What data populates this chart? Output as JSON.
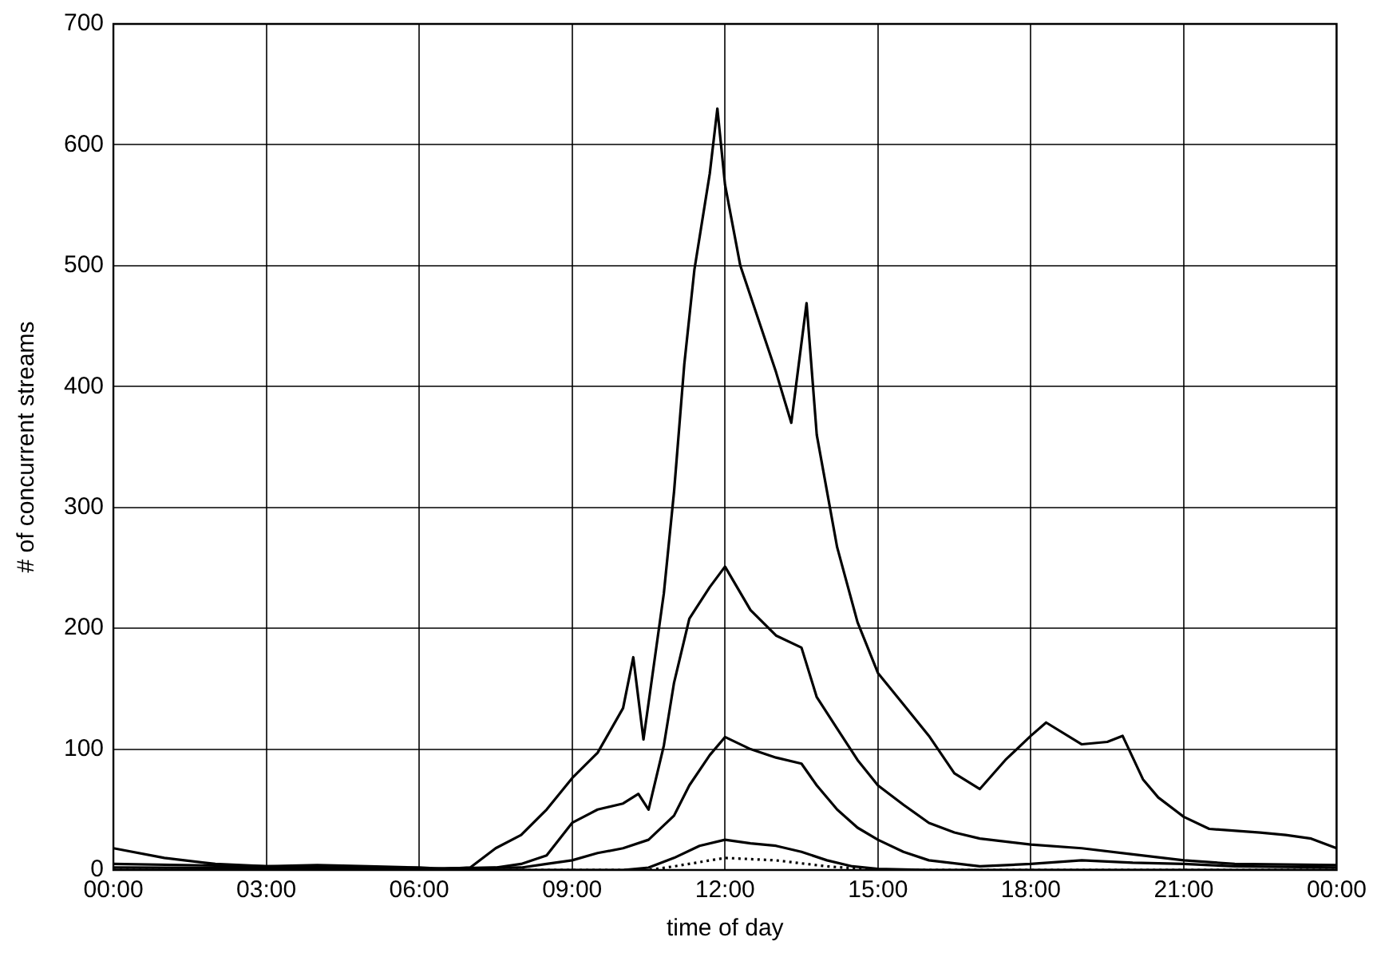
{
  "chart_data": {
    "type": "line",
    "xlabel": "time of day",
    "ylabel": "# of concurrent streams",
    "xlim": [
      0,
      24
    ],
    "ylim": [
      0,
      700
    ],
    "xticks": [
      {
        "value": 0,
        "label": "00:00"
      },
      {
        "value": 3,
        "label": "03:00"
      },
      {
        "value": 6,
        "label": "06:00"
      },
      {
        "value": 9,
        "label": "09:00"
      },
      {
        "value": 12,
        "label": "12:00"
      },
      {
        "value": 15,
        "label": "15:00"
      },
      {
        "value": 18,
        "label": "18:00"
      },
      {
        "value": 21,
        "label": "21:00"
      },
      {
        "value": 24,
        "label": "00:00"
      }
    ],
    "yticks": [
      0,
      100,
      200,
      300,
      400,
      500,
      600,
      700
    ],
    "grid": true,
    "legend": false,
    "marker": "none",
    "series": [
      {
        "color": "#000000",
        "x": [
          0,
          1,
          2,
          3,
          4,
          5,
          6,
          6.5,
          7,
          7.5,
          8,
          8.5,
          9,
          9.5,
          10,
          10.2,
          10.4,
          10.8,
          11,
          11.2,
          11.4,
          11.7,
          11.85,
          12,
          12.3,
          13,
          13.3,
          13.6,
          13.8,
          14.2,
          14.6,
          15,
          15.5,
          16,
          16.5,
          17,
          17.5,
          18,
          18.3,
          19,
          19.5,
          19.8,
          20.2,
          20.5,
          21,
          21.5,
          22.5,
          23,
          23.5,
          24
        ],
        "values": [
          18,
          10,
          5,
          3,
          4,
          3,
          2,
          1,
          2,
          18,
          29,
          50,
          76,
          97,
          134,
          176,
          108,
          229,
          313,
          418,
          497,
          576,
          630,
          567,
          500,
          412,
          370,
          469,
          360,
          267,
          205,
          163,
          137,
          111,
          80,
          67,
          91,
          111,
          122,
          104,
          106,
          111,
          75,
          60,
          44,
          34,
          31,
          29,
          26,
          18
        ]
      },
      {
        "color": "#000000",
        "x": [
          0,
          3,
          6,
          7.5,
          8,
          8.5,
          9,
          9.5,
          10,
          10.3,
          10.5,
          10.8,
          11,
          11.3,
          11.7,
          12,
          12.5,
          13,
          13.5,
          13.8,
          14.2,
          14.6,
          15,
          15.5,
          16,
          16.5,
          17,
          18,
          19,
          20,
          21,
          22,
          24
        ],
        "values": [
          5,
          3,
          1,
          2,
          5,
          12,
          39,
          50,
          55,
          63,
          50,
          103,
          155,
          208,
          234,
          251,
          215,
          194,
          184,
          143,
          117,
          91,
          70,
          54,
          39,
          31,
          26,
          21,
          18,
          13,
          8,
          5,
          4
        ]
      },
      {
        "color": "#000000",
        "x": [
          0,
          6,
          8,
          8.5,
          9,
          9.5,
          10,
          10.5,
          11,
          11.3,
          11.7,
          12,
          12.5,
          13,
          13.5,
          13.8,
          14.2,
          14.6,
          15,
          15.5,
          16,
          17,
          18,
          19,
          20,
          21,
          22,
          24
        ],
        "values": [
          2,
          1,
          2,
          5,
          8,
          14,
          18,
          25,
          45,
          70,
          95,
          110,
          100,
          93,
          88,
          70,
          50,
          35,
          25,
          15,
          8,
          3,
          5,
          8,
          6,
          5,
          3,
          2
        ]
      },
      {
        "color": "#000000",
        "x": [
          0,
          10,
          10.5,
          11,
          11.5,
          12,
          12.5,
          13,
          13.5,
          14,
          14.5,
          15,
          16,
          24
        ],
        "values": [
          0,
          0,
          2,
          10,
          20,
          25,
          22,
          20,
          15,
          8,
          3,
          1,
          0,
          0
        ]
      },
      {
        "color": "#000000",
        "line_style": "dotted",
        "x": [
          0,
          10.5,
          11,
          12,
          13,
          14,
          15,
          24
        ],
        "values": [
          0,
          0,
          3,
          10,
          8,
          3,
          0,
          0
        ]
      }
    ]
  }
}
